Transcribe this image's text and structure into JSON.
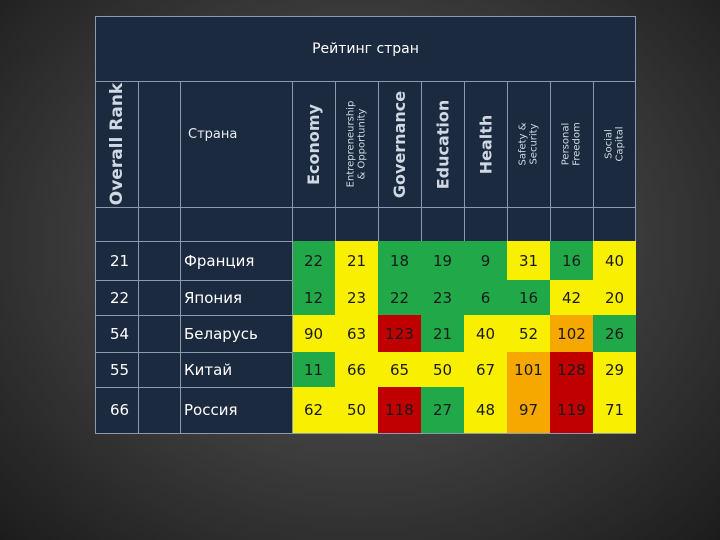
{
  "table": {
    "title": "Рейтинг стран",
    "headers": {
      "overall_rank": "Overall Rank",
      "country": "Страна",
      "categories": [
        {
          "label": "Economy",
          "size": "big"
        },
        {
          "label": "Entrepreneurship & Opportunity",
          "size": "small"
        },
        {
          "label": "Governance",
          "size": "big"
        },
        {
          "label": "Education",
          "size": "big"
        },
        {
          "label": "Health",
          "size": "big"
        },
        {
          "label": "Safety & Security",
          "size": "small"
        },
        {
          "label": "Personal Freedom",
          "size": "small"
        },
        {
          "label": "Social Capital",
          "size": "small"
        }
      ]
    },
    "colors": {
      "green": "#21a849",
      "yellow": "#f8f000",
      "orange": "#f6a800",
      "red": "#c00000"
    },
    "rows": [
      {
        "rank": "21",
        "country": "Франция",
        "scores": [
          "22",
          "21",
          "18",
          "19",
          "9",
          "31",
          "16",
          "40"
        ],
        "colors": [
          "green",
          "yellow",
          "green",
          "green",
          "green",
          "yellow",
          "green",
          "yellow"
        ]
      },
      {
        "rank": "22",
        "country": "Япония",
        "scores": [
          "12",
          "23",
          "22",
          "23",
          "6",
          "16",
          "42",
          "20"
        ],
        "colors": [
          "green",
          "yellow",
          "green",
          "green",
          "green",
          "green",
          "yellow",
          "yellow"
        ]
      },
      {
        "rank": "54",
        "country": "Беларусь",
        "scores": [
          "90",
          "63",
          "123",
          "21",
          "40",
          "52",
          "102",
          "26"
        ],
        "colors": [
          "yellow",
          "yellow",
          "red",
          "green",
          "yellow",
          "yellow",
          "orange",
          "green"
        ]
      },
      {
        "rank": "55",
        "country": "Китай",
        "scores": [
          "11",
          "66",
          "65",
          "50",
          "67",
          "101",
          "128",
          "29"
        ],
        "colors": [
          "green",
          "yellow",
          "yellow",
          "yellow",
          "yellow",
          "orange",
          "red",
          "yellow"
        ]
      },
      {
        "rank": "66",
        "country": "Россия",
        "scores": [
          "62",
          "50",
          "118",
          "27",
          "48",
          "97",
          "119",
          "71"
        ],
        "colors": [
          "yellow",
          "yellow",
          "red",
          "green",
          "yellow",
          "orange",
          "red",
          "yellow"
        ]
      }
    ]
  }
}
